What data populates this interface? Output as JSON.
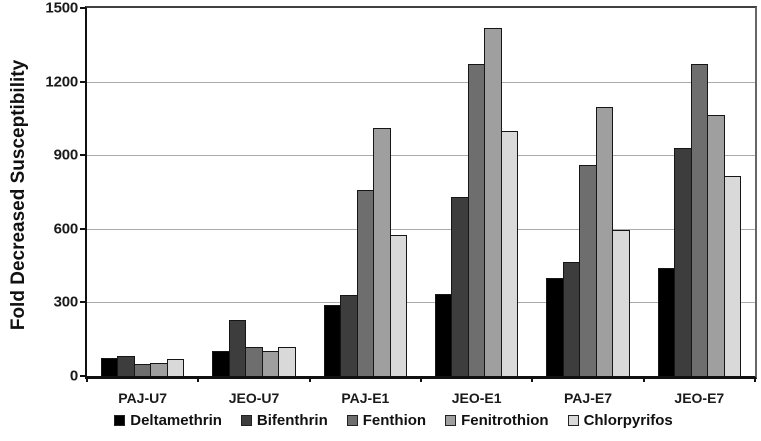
{
  "chart_data": {
    "type": "bar",
    "title": "",
    "xlabel": "",
    "ylabel": "Fold Decreased Susceptibility",
    "ylim": [
      0,
      1500
    ],
    "yticks": [
      0,
      300,
      600,
      900,
      1200,
      1500
    ],
    "grid": true,
    "legend_position": "bottom",
    "categories": [
      "PAJ-U7",
      "JEO-U7",
      "PAJ-E1",
      "JEO-E1",
      "PAJ-E7",
      "JEO-E7"
    ],
    "series": [
      {
        "name": "Deltamethrin",
        "color": "#000000",
        "values": [
          75,
          100,
          290,
          335,
          400,
          440
        ]
      },
      {
        "name": "Bifenthrin",
        "color": "#3d3d3d",
        "values": [
          80,
          230,
          330,
          730,
          465,
          930
        ]
      },
      {
        "name": "Fenthion",
        "color": "#6e6e6e",
        "values": [
          50,
          120,
          760,
          1270,
          860,
          1270
        ]
      },
      {
        "name": "Fenitrothion",
        "color": "#9f9f9f",
        "values": [
          55,
          100,
          1010,
          1420,
          1095,
          1065
        ]
      },
      {
        "name": "Chlorpyrifos",
        "color": "#d9d9d9",
        "values": [
          70,
          120,
          575,
          1000,
          595,
          815
        ]
      }
    ]
  }
}
